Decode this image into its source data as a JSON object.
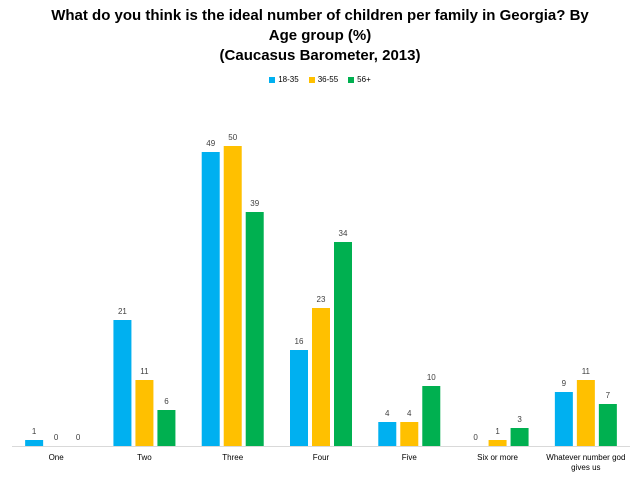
{
  "chart_data": {
    "type": "bar",
    "title_lines": [
      "What do you think is the ideal number of children per family in Georgia? By",
      "Age group (%)",
      "(Caucasus Barometer, 2013)"
    ],
    "categories": [
      "One",
      "Two",
      "Three",
      "Four",
      "Five",
      "Six or more",
      "Whatever number god gives us"
    ],
    "series": [
      {
        "name": "18-35",
        "color": "#00B0F0",
        "values": [
          1,
          21,
          49,
          16,
          4,
          0,
          9
        ]
      },
      {
        "name": "36-55",
        "color": "#FFC000",
        "values": [
          0,
          11,
          50,
          23,
          4,
          1,
          11
        ]
      },
      {
        "name": "56+",
        "color": "#00B050",
        "values": [
          0,
          6,
          39,
          34,
          10,
          3,
          7
        ]
      }
    ],
    "ylim": [
      0,
      60
    ],
    "legend_position": "top-center",
    "data_labels": true,
    "grid": false
  }
}
